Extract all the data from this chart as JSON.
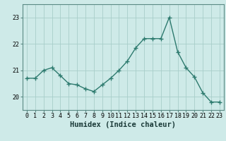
{
  "x": [
    0,
    1,
    2,
    3,
    4,
    5,
    6,
    7,
    8,
    9,
    10,
    11,
    12,
    13,
    14,
    15,
    16,
    17,
    18,
    19,
    20,
    21,
    22,
    23
  ],
  "y": [
    20.7,
    20.7,
    21.0,
    21.1,
    20.8,
    20.5,
    20.45,
    20.3,
    20.2,
    20.45,
    20.7,
    21.0,
    21.35,
    21.85,
    22.2,
    22.2,
    22.2,
    23.0,
    21.7,
    21.1,
    20.75,
    20.15,
    19.8,
    19.8
  ],
  "line_color": "#2d7a6e",
  "marker": "+",
  "marker_size": 4,
  "marker_linewidth": 1.0,
  "bg_color": "#ceeae8",
  "grid_color": "#a8ceca",
  "xlabel": "Humidex (Indice chaleur)",
  "ylim": [
    19.5,
    23.5
  ],
  "xlim": [
    -0.5,
    23.5
  ],
  "yticks": [
    20,
    21,
    22,
    23
  ],
  "tick_fontsize": 6,
  "xlabel_fontsize": 7.5,
  "linewidth": 1.0,
  "spine_color": "#5a8a84"
}
